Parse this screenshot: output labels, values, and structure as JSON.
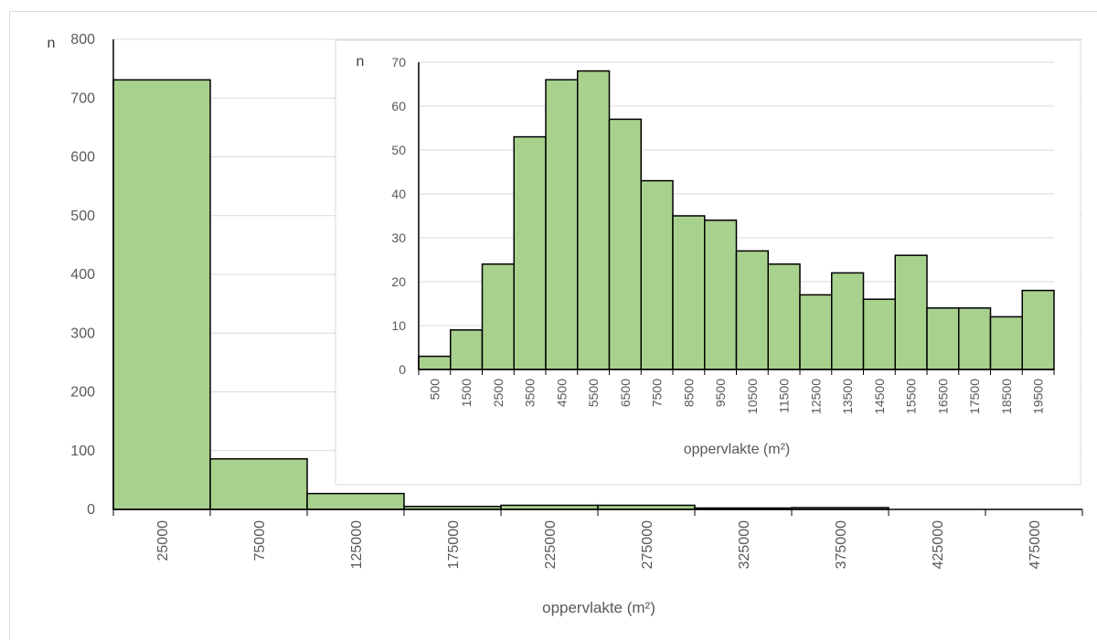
{
  "chart_data": [
    {
      "type": "bar",
      "chart": "main",
      "categories": [
        "25000",
        "75000",
        "125000",
        "175000",
        "225000",
        "275000",
        "325000",
        "375000",
        "425000",
        "475000"
      ],
      "values": [
        731,
        86,
        27,
        5,
        7,
        7,
        2,
        3,
        0,
        0
      ],
      "ylabel": "n",
      "xlabel": "oppervlakte (m²)",
      "ylim": [
        0,
        800
      ],
      "yticks": [
        0,
        100,
        200,
        300,
        400,
        500,
        600,
        700,
        800
      ],
      "grid": true,
      "bar_color": "#a9d18e",
      "bar_edge_color": "#000000"
    },
    {
      "type": "bar",
      "chart": "inset",
      "categories": [
        "500",
        "1500",
        "2500",
        "3500",
        "4500",
        "5500",
        "6500",
        "7500",
        "8500",
        "9500",
        "10500",
        "11500",
        "12500",
        "13500",
        "14500",
        "15500",
        "16500",
        "17500",
        "18500",
        "19500"
      ],
      "values": [
        3,
        9,
        24,
        53,
        66,
        68,
        57,
        43,
        35,
        34,
        27,
        24,
        17,
        22,
        16,
        26,
        14,
        14,
        12,
        18
      ],
      "ylabel": "n",
      "xlabel": "oppervlakte (m²)",
      "ylim": [
        0,
        70
      ],
      "yticks": [
        0,
        10,
        20,
        30,
        40,
        50,
        60,
        70
      ],
      "grid": true,
      "bar_color": "#a9d18e",
      "bar_edge_color": "#000000"
    }
  ]
}
